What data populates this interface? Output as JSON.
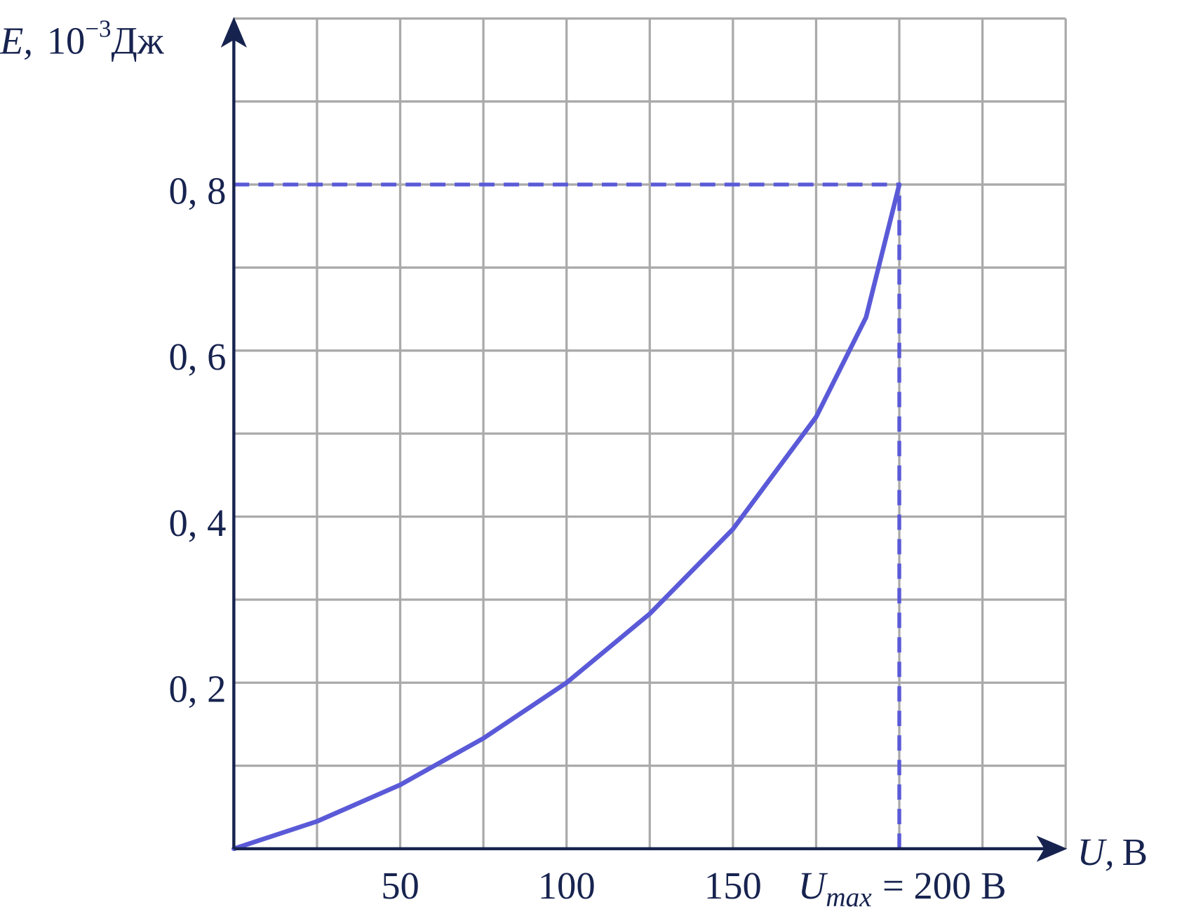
{
  "chart_data": {
    "type": "line",
    "x_label": {
      "symbol": "U,",
      "unit": "В"
    },
    "y_label": {
      "symbol": "E,",
      "power": "10",
      "exponent": "−3",
      "unit": "Дж"
    },
    "x": [
      0,
      25,
      50,
      75,
      100,
      125,
      150,
      175,
      190,
      200
    ],
    "series": [
      {
        "color": "#5a5ad8",
        "values": [
          0,
          0.033,
          0.077,
          0.133,
          0.2,
          0.283,
          0.385,
          0.52,
          0.64,
          0.8
        ]
      }
    ],
    "xlim": [
      0,
      250
    ],
    "ylim": [
      0,
      1
    ],
    "xticks": [
      50,
      100,
      150,
      {
        "value": 200,
        "label": "= 200 В"
      }
    ],
    "x_tick_prefix": {
      "symbol": "U",
      "sub": "max"
    },
    "yticks": [
      {
        "value": 0.2,
        "label": "0, 2"
      },
      {
        "value": 0.4,
        "label": "0, 4"
      },
      {
        "value": 0.6,
        "label": "0, 6"
      },
      {
        "value": 0.8,
        "label": "0, 8"
      }
    ],
    "xgrid": [
      25,
      50,
      75,
      100,
      125,
      150,
      175,
      200,
      225,
      250
    ],
    "ygrid": [
      0.1,
      0.2,
      0.3,
      0.4,
      0.5,
      0.6,
      0.7,
      0.8,
      0.9,
      1
    ],
    "grid": true,
    "guide_lines": true
  }
}
